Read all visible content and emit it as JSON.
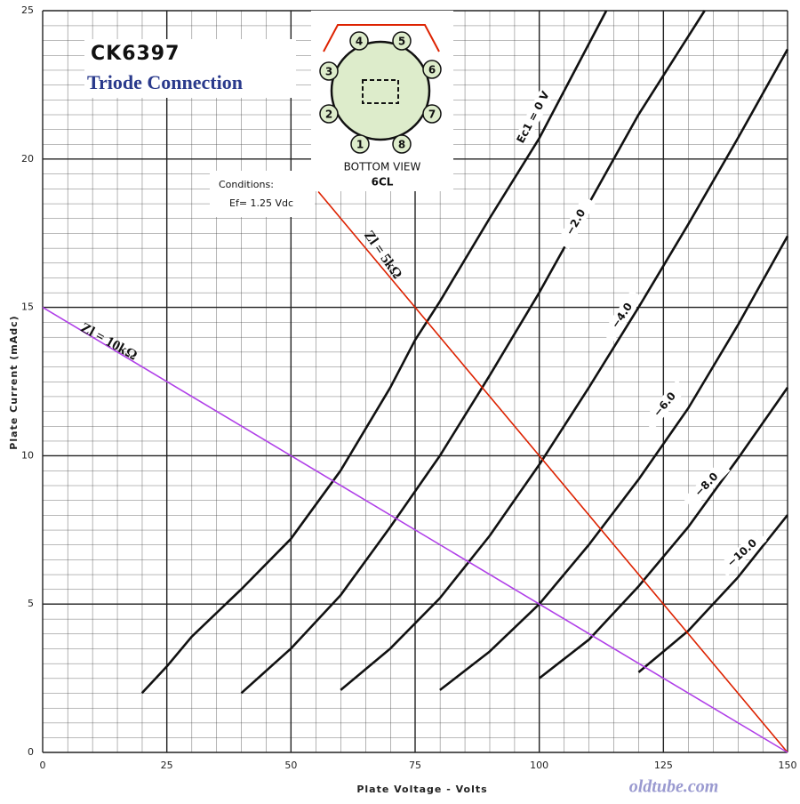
{
  "chart_data": {
    "type": "line",
    "title": "CK6397",
    "subtitle": "Triode Connection",
    "x_label": "Plate Voltage - Volts",
    "y_label": "Plate Current (mAdc)",
    "xlim": [
      0,
      150
    ],
    "ylim": [
      0,
      25
    ],
    "xticks": [
      0,
      25,
      50,
      75,
      100,
      125,
      150
    ],
    "yticks": [
      0,
      5,
      10,
      15,
      20,
      25
    ],
    "grid": true,
    "conditions": [
      "Conditions:",
      "Ef= 1.25 Vdc"
    ],
    "base_diagram": {
      "caption": "BOTTOM VIEW",
      "base": "6CL",
      "pins": [
        "1",
        "2",
        "3",
        "4",
        "5",
        "6",
        "7",
        "8"
      ]
    },
    "watermark": "oldtube.com",
    "series": [
      {
        "name": "Ec1 = 0 V",
        "color": "#111111",
        "x": [
          20,
          25,
          30,
          40,
          50,
          60,
          70,
          75,
          80,
          90,
          100,
          113.5
        ],
        "values": [
          2,
          2.9,
          3.9,
          5.5,
          7.2,
          9.5,
          12.3,
          13.9,
          15.2,
          18,
          20.7,
          25
        ]
      },
      {
        "name": "−2.0",
        "color": "#111111",
        "x": [
          40,
          50,
          60,
          70,
          80,
          90,
          100,
          110,
          120,
          133.3
        ],
        "values": [
          2,
          3.5,
          5.3,
          7.6,
          10,
          12.7,
          15.5,
          18.5,
          21.5,
          25
        ]
      },
      {
        "name": "−4.0",
        "color": "#111111",
        "x": [
          60,
          70,
          80,
          90,
          100,
          110,
          120,
          130,
          140,
          150
        ],
        "values": [
          2.1,
          3.5,
          5.2,
          7.3,
          9.7,
          12.3,
          15,
          17.8,
          20.7,
          23.7
        ]
      },
      {
        "name": "−6.0",
        "color": "#111111",
        "x": [
          80,
          90,
          100,
          110,
          120,
          130,
          140,
          150
        ],
        "values": [
          2.1,
          3.4,
          5,
          7,
          9.2,
          11.6,
          14.4,
          17.4
        ]
      },
      {
        "name": "−8.0",
        "color": "#111111",
        "x": [
          100,
          110,
          120,
          130,
          140,
          150
        ],
        "values": [
          2.5,
          3.8,
          5.6,
          7.6,
          9.9,
          12.3
        ]
      },
      {
        "name": "−10.0",
        "color": "#111111",
        "x": [
          120,
          130,
          140,
          150
        ],
        "values": [
          2.7,
          4.1,
          5.9,
          8
        ]
      },
      {
        "name": "Zl = 5kΩ",
        "color": "#dd2200",
        "x": [
          55.5,
          150
        ],
        "values": [
          18.9,
          0
        ]
      },
      {
        "name": "Zl = 10kΩ",
        "color": "#b040e8",
        "x": [
          0,
          150
        ],
        "values": [
          15,
          0
        ]
      }
    ]
  }
}
